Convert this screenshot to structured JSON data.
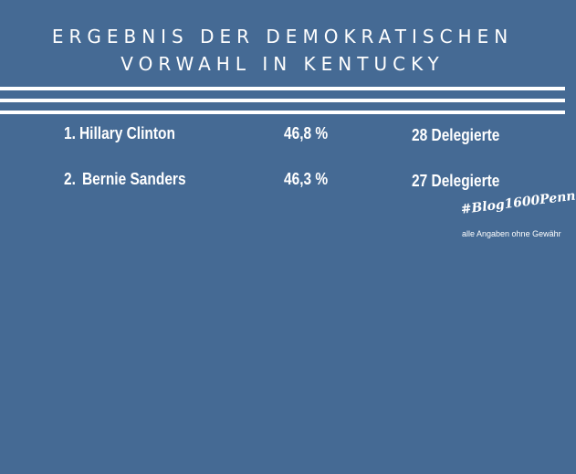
{
  "title": {
    "line1": "ERGEBNIS DER DEMOKRATISCHEN",
    "line2": "VORWAHL IN KENTUCKY"
  },
  "results": [
    {
      "rank": "1.",
      "candidate": "Hillary Clinton",
      "percent": "46,8 %",
      "delegates": "28 Delegierte"
    },
    {
      "rank": "2.",
      "candidate": "Bernie Sanders",
      "percent": "46,3 %",
      "delegates": "27 Delegierte"
    }
  ],
  "handle": "#Blog1600Penn",
  "disclaimer": "alle Angaben ohne Gewähr",
  "colors": {
    "background": "#456a94",
    "text": "#ffffff"
  }
}
